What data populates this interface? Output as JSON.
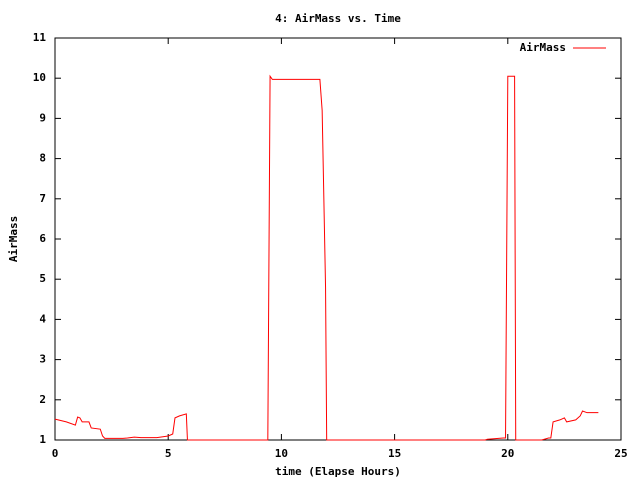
{
  "chart_data": {
    "type": "line",
    "title": "4: AirMass vs. Time",
    "xlabel": "time (Elapse Hours)",
    "ylabel": "AirMass",
    "x": [
      0,
      0.5,
      0.9,
      1.0,
      1.1,
      1.2,
      1.5,
      1.6,
      2.0,
      2.1,
      2.2,
      3.0,
      3.2,
      3.5,
      3.8,
      4.5,
      5.0,
      5.2,
      5.3,
      5.5,
      5.8,
      5.85,
      9.4,
      9.5,
      9.6,
      11.7,
      11.8,
      11.95,
      12.0,
      19.0,
      19.1,
      19.8,
      19.9,
      20.0,
      20.3,
      20.35,
      21.5,
      21.8,
      21.9,
      22.0,
      22.3,
      22.5,
      22.6,
      23.0,
      23.2,
      23.3,
      23.5,
      24.0
    ],
    "series": [
      {
        "name": "AirMass",
        "color": "#ff0000",
        "values": [
          1.52,
          1.45,
          1.37,
          1.57,
          1.55,
          1.45,
          1.45,
          1.3,
          1.27,
          1.1,
          1.04,
          1.04,
          1.05,
          1.07,
          1.06,
          1.06,
          1.1,
          1.15,
          1.55,
          1.6,
          1.65,
          1.0,
          1.0,
          10.05,
          9.97,
          9.97,
          9.2,
          4.8,
          1.0,
          1.0,
          1.02,
          1.05,
          1.05,
          10.05,
          10.05,
          1.0,
          1.0,
          1.05,
          1.05,
          1.45,
          1.5,
          1.55,
          1.45,
          1.5,
          1.6,
          1.72,
          1.68,
          1.68
        ]
      }
    ],
    "xlim": [
      0,
      25
    ],
    "xticks": [
      0,
      5,
      10,
      15,
      20,
      25
    ],
    "ylim": [
      1,
      11
    ],
    "yticks": [
      1,
      2,
      3,
      4,
      5,
      6,
      7,
      8,
      9,
      10,
      11
    ],
    "legend": "top-right"
  }
}
